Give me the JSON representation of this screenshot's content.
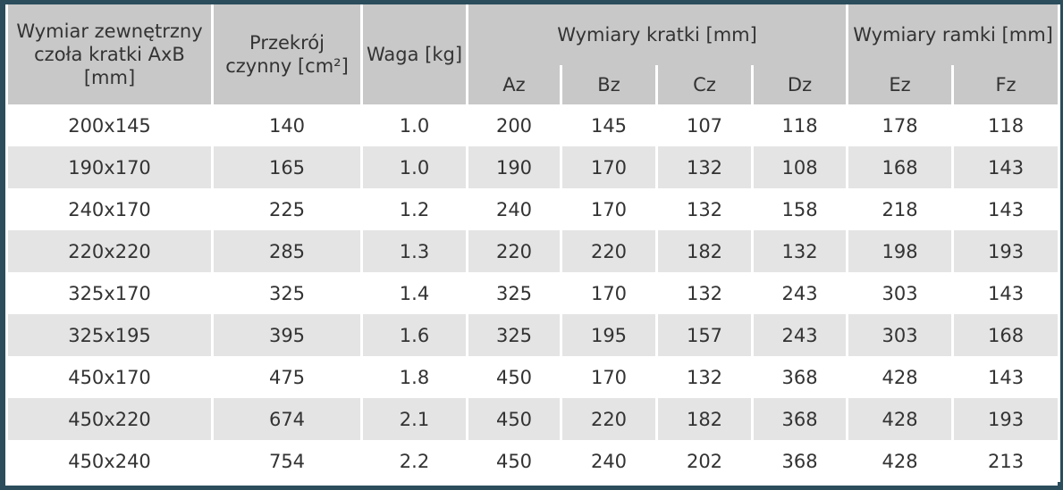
{
  "table": {
    "columns": [
      "Wymiar zewnętrzny czoła kratki AxB [mm]",
      "Przekrój czynny [cm²]",
      "Waga [kg]"
    ],
    "groups": [
      {
        "label": "Wymiary kratki [mm]",
        "sub": [
          "Az",
          "Bz",
          "Cz",
          "Dz"
        ]
      },
      {
        "label": "Wymiary ramki [mm]",
        "sub": [
          "Ez",
          "Fz"
        ]
      }
    ],
    "rows": [
      [
        "200x145",
        "140",
        "1.0",
        "200",
        "145",
        "107",
        "118",
        "178",
        "118"
      ],
      [
        "190x170",
        "165",
        "1.0",
        "190",
        "170",
        "132",
        "108",
        "168",
        "143"
      ],
      [
        "240x170",
        "225",
        "1.2",
        "240",
        "170",
        "132",
        "158",
        "218",
        "143"
      ],
      [
        "220x220",
        "285",
        "1.3",
        "220",
        "220",
        "182",
        "132",
        "198",
        "193"
      ],
      [
        "325x170",
        "325",
        "1.4",
        "325",
        "170",
        "132",
        "243",
        "303",
        "143"
      ],
      [
        "325x195",
        "395",
        "1.6",
        "325",
        "195",
        "157",
        "243",
        "303",
        "168"
      ],
      [
        "450x170",
        "475",
        "1.8",
        "450",
        "170",
        "132",
        "368",
        "428",
        "143"
      ],
      [
        "450x220",
        "674",
        "2.1",
        "450",
        "220",
        "182",
        "368",
        "428",
        "193"
      ],
      [
        "450x240",
        "754",
        "2.2",
        "450",
        "240",
        "202",
        "368",
        "428",
        "213"
      ]
    ]
  }
}
